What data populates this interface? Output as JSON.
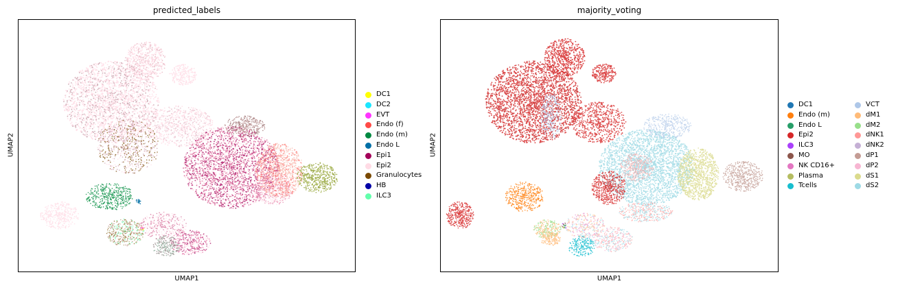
{
  "chart_data": [
    {
      "type": "scatter",
      "title": "predicted_labels",
      "xlabel": "UMAP1",
      "ylabel": "UMAP2",
      "grid": false,
      "ticks": false,
      "legend_position": "right",
      "legend": [
        {
          "label": "DC1",
          "color": "#ffff00"
        },
        {
          "label": "DC2",
          "color": "#1ce6ff"
        },
        {
          "label": "EVT",
          "color": "#ff34ff"
        },
        {
          "label": "Endo (f)",
          "color": "#ff4a46"
        },
        {
          "label": "Endo (m)",
          "color": "#008941"
        },
        {
          "label": "Endo L",
          "color": "#006fa6"
        },
        {
          "label": "Epi1",
          "color": "#a30059"
        },
        {
          "label": "Epi2",
          "color": "#ffdbe5"
        },
        {
          "label": "Granulocytes",
          "color": "#7a4900"
        },
        {
          "label": "HB",
          "color": "#0000a6"
        },
        {
          "label": "ILC3",
          "color": "#63ffac"
        }
      ]
    },
    {
      "type": "scatter",
      "title": "majority_voting",
      "xlabel": "UMAP1",
      "ylabel": "UMAP2",
      "grid": false,
      "ticks": false,
      "legend_position": "right",
      "legend": [
        {
          "label": "DC1",
          "color": "#1f77b4"
        },
        {
          "label": "Endo (m)",
          "color": "#ff7f0e"
        },
        {
          "label": "Endo L",
          "color": "#279e68"
        },
        {
          "label": "Epi2",
          "color": "#d62728"
        },
        {
          "label": "ILC3",
          "color": "#aa40fc"
        },
        {
          "label": "MO",
          "color": "#8c564b"
        },
        {
          "label": "NK CD16+",
          "color": "#e377c2"
        },
        {
          "label": "Plasma",
          "color": "#b5bd61"
        },
        {
          "label": "Tcells",
          "color": "#17becf"
        },
        {
          "label": "VCT",
          "color": "#aec7e8"
        },
        {
          "label": "dM1",
          "color": "#ffbb78"
        },
        {
          "label": "dM2",
          "color": "#98df8a"
        },
        {
          "label": "dNK1",
          "color": "#ff9896"
        },
        {
          "label": "dNK2",
          "color": "#c5b0d5"
        },
        {
          "label": "dP1",
          "color": "#c49c94"
        },
        {
          "label": "dP2",
          "color": "#f7b6d2"
        },
        {
          "label": "dS1",
          "color": "#dbdb8d"
        },
        {
          "label": "dS2",
          "color": "#9edae5"
        }
      ]
    }
  ]
}
